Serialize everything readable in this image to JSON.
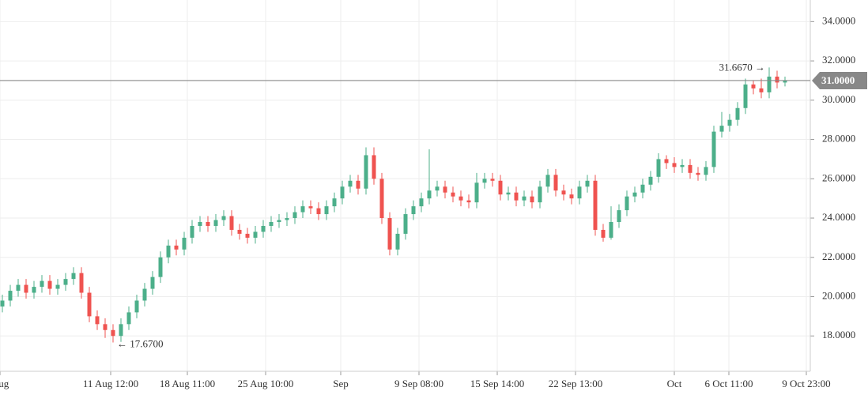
{
  "chart_data": {
    "type": "candlestick",
    "up_color": "#4caf8a",
    "down_color": "#ef5350",
    "ylim": [
      16.2,
      35.1
    ],
    "yticks": [
      {
        "value": 18,
        "label": "18.0000"
      },
      {
        "value": 20,
        "label": "20.0000"
      },
      {
        "value": 22,
        "label": "22.0000"
      },
      {
        "value": 24,
        "label": "24.0000"
      },
      {
        "value": 26,
        "label": "26.0000"
      },
      {
        "value": 28,
        "label": "28.0000"
      },
      {
        "value": 30,
        "label": "30.0000"
      },
      {
        "value": 32,
        "label": "32.0000"
      },
      {
        "value": 34,
        "label": "34.0000"
      }
    ],
    "xlim": [
      -0.3,
      102.2
    ],
    "xticks": [
      {
        "value": -0.3,
        "label": "Aug"
      },
      {
        "value": 13.7,
        "label": "11 Aug 12:00"
      },
      {
        "value": 23.4,
        "label": "18 Aug 11:00"
      },
      {
        "value": 33.3,
        "label": "25 Aug 10:00"
      },
      {
        "value": 42.8,
        "label": "Sep"
      },
      {
        "value": 52.7,
        "label": "9 Sep 08:00"
      },
      {
        "value": 62.6,
        "label": "15 Sep 14:00"
      },
      {
        "value": 72.5,
        "label": "22 Sep 13:00"
      },
      {
        "value": 85,
        "label": "Oct"
      },
      {
        "value": 91.9,
        "label": "6 Oct 11:00"
      },
      {
        "value": 101.7,
        "label": "9 Oct 23:00"
      }
    ],
    "grid": true,
    "last_price": {
      "value": 31,
      "label": "31.0000"
    },
    "annotations": [
      {
        "text": "31.6670 →",
        "x": 97,
        "y": 31.667
      },
      {
        "text": "← 17.6700",
        "x": 14,
        "y": 17.67
      }
    ],
    "open": [
      19.5,
      19.8,
      20.3,
      20.6,
      20.2,
      20.5,
      20.8,
      20.4,
      20.6,
      20.9,
      21.2,
      20.2,
      19.0,
      18.6,
      18.3,
      18.0,
      18.6,
      19.2,
      19.8,
      20.4,
      21.0,
      22.0,
      22.6,
      22.4,
      23.0,
      23.6,
      23.8,
      23.6,
      23.9,
      24.1,
      23.4,
      23.2,
      23.0,
      23.3,
      23.6,
      23.8,
      23.9,
      24.0,
      24.3,
      24.6,
      24.5,
      24.2,
      24.6,
      25.0,
      25.6,
      25.9,
      25.5,
      27.2,
      26.0,
      24.0,
      22.4,
      23.2,
      24.2,
      24.6,
      25.0,
      25.4,
      25.6,
      25.3,
      25.1,
      24.9,
      24.8,
      25.8,
      26.0,
      25.9,
      25.2,
      25.3,
      24.9,
      25.1,
      24.8,
      25.6,
      26.2,
      25.4,
      25.2,
      25.0,
      25.6,
      25.9,
      23.4,
      23.0,
      23.8,
      24.4,
      25.1,
      25.3,
      25.7,
      26.1,
      27.0,
      26.8,
      26.6,
      26.7,
      26.3,
      26.2,
      26.6,
      28.4,
      28.7,
      29.0,
      29.6,
      30.8,
      30.6,
      30.4,
      31.2,
      30.9
    ],
    "high": [
      20.1,
      20.6,
      20.9,
      20.9,
      20.8,
      21.1,
      21.1,
      20.9,
      21.2,
      21.5,
      21.5,
      20.5,
      19.3,
      18.9,
      18.6,
      18.9,
      19.5,
      20.1,
      20.7,
      21.3,
      22.3,
      22.9,
      22.9,
      23.3,
      23.9,
      24.1,
      24.1,
      24.2,
      24.4,
      24.4,
      23.7,
      23.5,
      23.6,
      23.9,
      24.1,
      24.2,
      24.3,
      24.6,
      24.9,
      24.9,
      24.8,
      24.9,
      25.3,
      25.9,
      26.2,
      26.2,
      27.6,
      27.6,
      26.3,
      24.3,
      23.5,
      24.5,
      24.9,
      25.3,
      27.5,
      25.9,
      25.9,
      25.6,
      25.4,
      25.2,
      26.3,
      26.3,
      26.3,
      26.2,
      25.6,
      25.6,
      25.4,
      25.4,
      25.9,
      26.5,
      26.5,
      25.7,
      25.5,
      25.9,
      26.2,
      26.2,
      23.7,
      24.6,
      24.7,
      25.4,
      25.6,
      26.0,
      26.4,
      27.3,
      27.2,
      27.1,
      27.0,
      27.0,
      26.6,
      26.9,
      28.7,
      29.4,
      29.3,
      29.9,
      31.1,
      31.0,
      31.1,
      31.667,
      31.5,
      31.2
    ],
    "low": [
      19.2,
      19.5,
      20.0,
      19.9,
      19.9,
      20.2,
      20.1,
      20.1,
      20.3,
      20.6,
      19.9,
      18.7,
      18.3,
      17.9,
      17.67,
      17.7,
      18.3,
      18.9,
      19.5,
      20.1,
      20.7,
      21.7,
      22.1,
      22.1,
      22.7,
      23.3,
      23.3,
      23.3,
      23.6,
      23.1,
      22.9,
      22.7,
      22.7,
      23.0,
      23.3,
      23.5,
      23.6,
      23.7,
      24.0,
      24.2,
      23.9,
      23.9,
      24.3,
      24.7,
      25.3,
      25.2,
      25.2,
      25.7,
      23.7,
      22.1,
      22.1,
      22.9,
      23.9,
      24.3,
      24.7,
      25.1,
      25.0,
      24.8,
      24.6,
      24.5,
      24.5,
      25.5,
      25.6,
      24.9,
      24.9,
      24.6,
      24.6,
      24.5,
      24.5,
      25.3,
      25.1,
      24.9,
      24.7,
      24.7,
      25.3,
      23.1,
      22.8,
      22.9,
      23.5,
      24.1,
      24.8,
      25.0,
      25.4,
      25.8,
      26.5,
      26.3,
      26.3,
      26.0,
      25.9,
      25.9,
      26.3,
      28.1,
      28.4,
      28.7,
      29.3,
      30.3,
      30.1,
      30.1,
      30.6,
      30.7
    ],
    "close": [
      19.8,
      20.3,
      20.6,
      20.2,
      20.5,
      20.8,
      20.4,
      20.6,
      20.9,
      21.2,
      20.2,
      19.0,
      18.6,
      18.3,
      18.0,
      18.6,
      19.2,
      19.8,
      20.4,
      21.0,
      22.0,
      22.6,
      22.4,
      23.0,
      23.6,
      23.8,
      23.6,
      23.9,
      24.1,
      23.4,
      23.2,
      23.0,
      23.3,
      23.6,
      23.8,
      23.9,
      24.0,
      24.3,
      24.6,
      24.5,
      24.2,
      24.6,
      25.0,
      25.6,
      25.9,
      25.5,
      27.2,
      26.0,
      24.0,
      22.4,
      23.2,
      24.2,
      24.6,
      25.0,
      25.4,
      25.6,
      25.3,
      25.1,
      24.9,
      24.8,
      25.8,
      26.0,
      25.9,
      25.2,
      25.3,
      24.9,
      25.1,
      24.8,
      25.6,
      26.2,
      25.4,
      25.2,
      25.0,
      25.6,
      25.9,
      23.4,
      23.0,
      23.8,
      24.4,
      25.1,
      25.3,
      25.7,
      26.1,
      27.0,
      26.8,
      26.6,
      26.7,
      26.3,
      26.2,
      26.6,
      28.4,
      28.7,
      29.0,
      29.6,
      30.8,
      30.6,
      30.4,
      31.2,
      30.9,
      31.0
    ]
  }
}
